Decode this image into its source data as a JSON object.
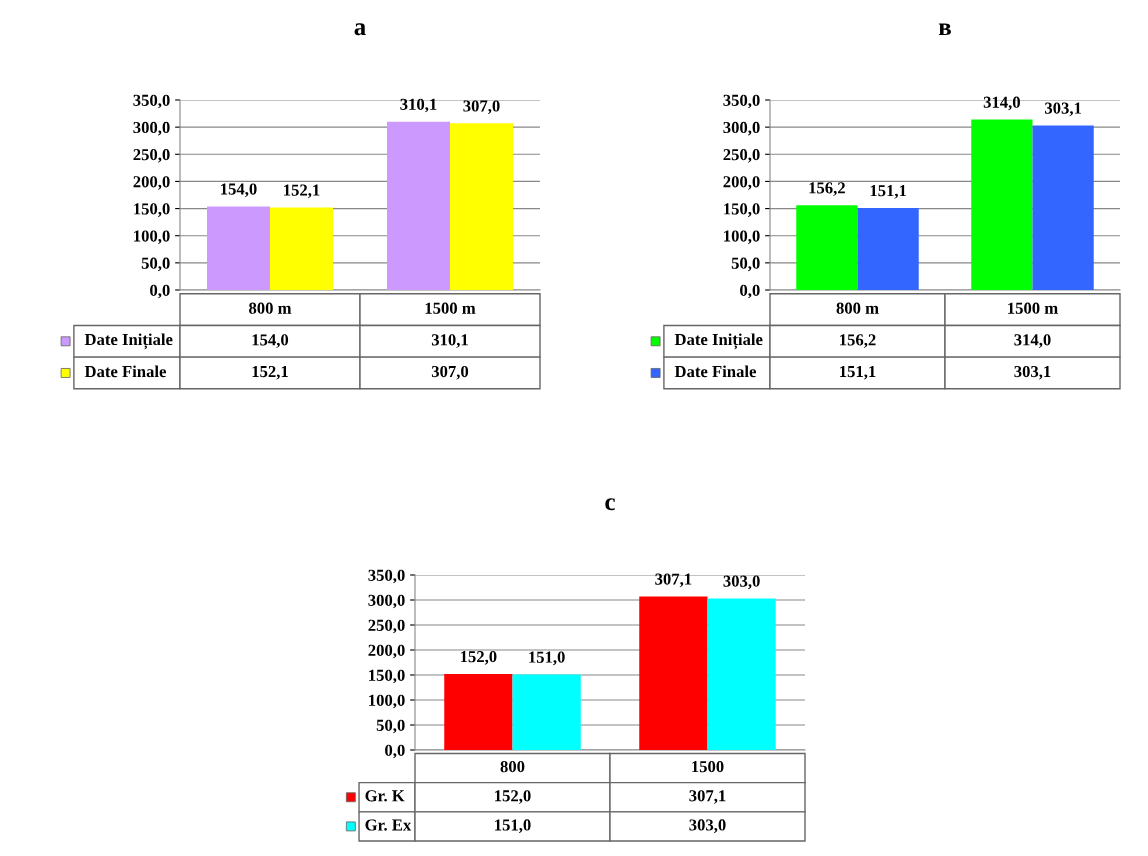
{
  "chart_data": [
    {
      "type": "bar",
      "title": "a",
      "categories": [
        "800 m",
        "1500 m"
      ],
      "series": [
        {
          "name": "Date Inițiale",
          "color": "#cc99ff",
          "values": [
            154.0,
            310.1
          ],
          "value_labels": [
            "154,0",
            "310,1"
          ]
        },
        {
          "name": "Date Finale",
          "color": "#ffff00",
          "values": [
            152.1,
            307.0
          ],
          "value_labels": [
            "152,1",
            "307,0"
          ]
        }
      ],
      "ylim": [
        0,
        350
      ],
      "yticks": [
        {
          "value": 0,
          "label": "0,0"
        },
        {
          "value": 50,
          "label": "50,0"
        },
        {
          "value": 100,
          "label": "100,0"
        },
        {
          "value": 150,
          "label": "150,0"
        },
        {
          "value": 200,
          "label": "200,0"
        },
        {
          "value": 250,
          "label": "250,0"
        },
        {
          "value": 300,
          "label": "300,0"
        },
        {
          "value": 350,
          "label": "350,0"
        }
      ],
      "grid": "y",
      "legend": "bottom left"
    },
    {
      "type": "bar",
      "title": "в",
      "categories": [
        "800 m",
        "1500 m"
      ],
      "series": [
        {
          "name": "Date Inițiale",
          "color": "#00ff00",
          "values": [
            156.2,
            314.0
          ],
          "value_labels": [
            "156,2",
            "314,0"
          ]
        },
        {
          "name": "Date Finale",
          "color": "#3366ff",
          "values": [
            151.1,
            303.1
          ],
          "value_labels": [
            "151,1",
            "303,1"
          ]
        }
      ],
      "ylim": [
        0,
        350
      ],
      "yticks": [
        {
          "value": 0,
          "label": "0,0"
        },
        {
          "value": 50,
          "label": "50,0"
        },
        {
          "value": 100,
          "label": "100,0"
        },
        {
          "value": 150,
          "label": "150,0"
        },
        {
          "value": 200,
          "label": "200,0"
        },
        {
          "value": 250,
          "label": "250,0"
        },
        {
          "value": 300,
          "label": "300,0"
        },
        {
          "value": 350,
          "label": "350,0"
        }
      ],
      "grid": "y",
      "legend": "bottom left"
    },
    {
      "type": "bar",
      "title": "c",
      "categories": [
        "800",
        "1500"
      ],
      "series": [
        {
          "name": "Gr. K",
          "color": "#ff0000",
          "values": [
            152.0,
            307.1
          ],
          "value_labels": [
            "152,0",
            "307,1"
          ]
        },
        {
          "name": "Gr. Ex",
          "color": "#00ffff",
          "values": [
            151.0,
            303.0
          ],
          "value_labels": [
            "151,0",
            "303,0"
          ]
        }
      ],
      "ylim": [
        0,
        350
      ],
      "yticks": [
        {
          "value": 0,
          "label": "0,0"
        },
        {
          "value": 50,
          "label": "50,0"
        },
        {
          "value": 100,
          "label": "100,0"
        },
        {
          "value": 150,
          "label": "150,0"
        },
        {
          "value": 200,
          "label": "200,0"
        },
        {
          "value": 250,
          "label": "250,0"
        },
        {
          "value": 300,
          "label": "300,0"
        },
        {
          "value": 350,
          "label": "350,0"
        }
      ],
      "grid": "y",
      "legend": "bottom left"
    }
  ]
}
